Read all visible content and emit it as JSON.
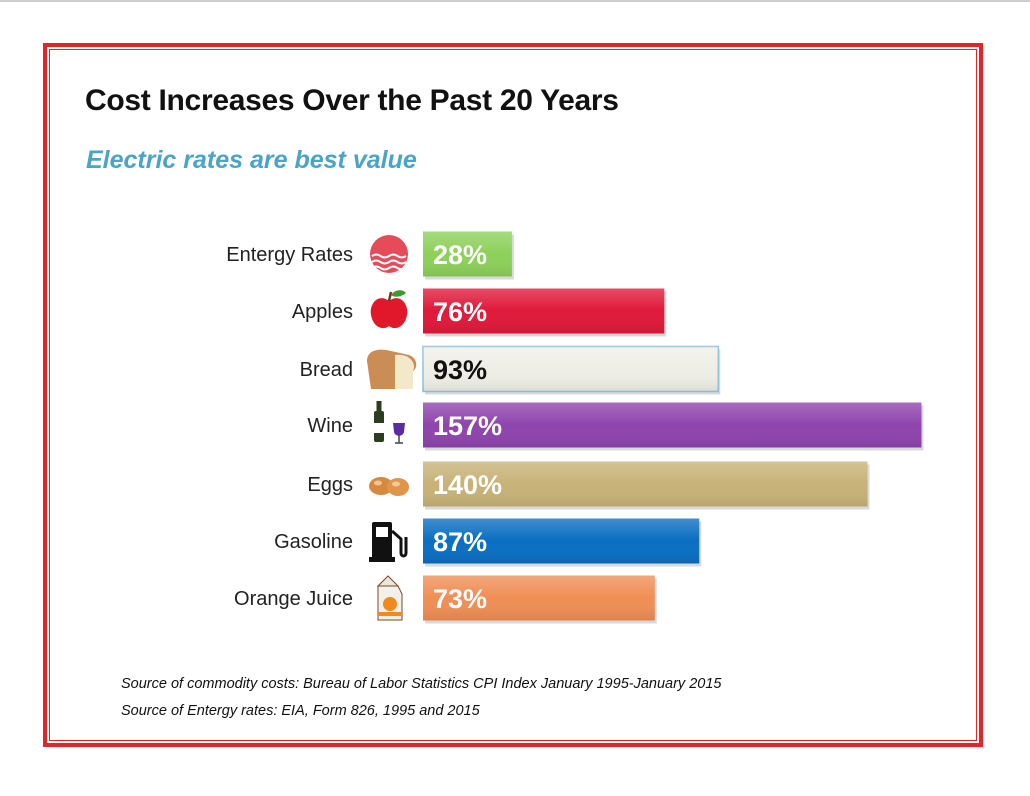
{
  "title": "Cost Increases Over the Past 20 Years",
  "subtitle": "Electric rates are best value",
  "sources": [
    "Source of commodity costs: Bureau of Labor Statistics CPI Index January 1995-January 2015",
    "Source of Entergy rates: EIA, Form 826, 1995 and 2015"
  ],
  "colors": {
    "frame": "#e0262b",
    "subtitle": "#4aa3c8"
  },
  "chart_data": {
    "type": "bar",
    "orientation": "horizontal",
    "categories": [
      "Entergy Rates",
      "Apples",
      "Bread",
      "Wine",
      "Eggs",
      "Gasoline",
      "Orange Juice"
    ],
    "values": [
      28,
      76,
      93,
      157,
      140,
      87,
      73
    ],
    "data_labels": [
      "28%",
      "76%",
      "93%",
      "157%",
      "140%",
      "87%",
      "73%"
    ],
    "bar_colors": [
      "#8dd05a",
      "#e0193a",
      "#efeee6",
      "#8e44ad",
      "#c7b277",
      "#0a6ec2",
      "#ef8e55"
    ],
    "label_colors": [
      "#ffffff",
      "#ffffff",
      "#111111",
      "#ffffff",
      "#ffffff",
      "#ffffff",
      "#ffffff"
    ],
    "icons": [
      "power-plant-icon",
      "apple-icon",
      "bread-icon",
      "wine-icon",
      "eggs-icon",
      "gas-pump-icon",
      "juice-carton-icon"
    ],
    "xlim": [
      0,
      160
    ],
    "grid": false,
    "legend": "none"
  }
}
